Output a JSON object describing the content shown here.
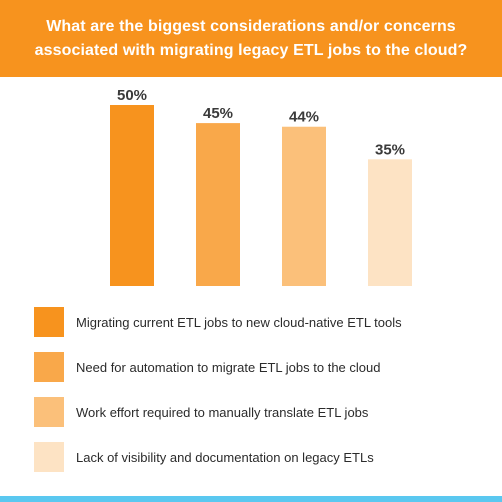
{
  "header": {
    "title": "What are the biggest considerations and/or concerns associated with migrating legacy ETL jobs to the cloud?"
  },
  "chart_data": {
    "type": "bar",
    "title": "What are the biggest considerations and/or concerns associated with migrating legacy ETL jobs to the cloud?",
    "categories": [
      "Migrating current ETL jobs to new cloud-native ETL tools",
      "Need for automation to migrate ETL jobs to the cloud",
      "Work effort required to manually translate ETL jobs",
      "Lack of visibility and documentation on legacy ETLs"
    ],
    "values": [
      50,
      45,
      44,
      35
    ],
    "value_labels": [
      "50%",
      "45%",
      "44%",
      "35%"
    ],
    "colors": [
      "#f7931e",
      "#f9a84a",
      "#fbc07a",
      "#fde3c4"
    ],
    "ylim": [
      0,
      50
    ],
    "grid": false,
    "legend_position": "bottom"
  },
  "legend": {
    "items": [
      {
        "label": "Migrating current ETL jobs to new cloud-native ETL tools",
        "color": "#f7931e"
      },
      {
        "label": "Need for automation to migrate ETL jobs to the cloud",
        "color": "#f9a84a"
      },
      {
        "label": "Work effort required to manually translate ETL jobs",
        "color": "#fbc07a"
      },
      {
        "label": "Lack of visibility and documentation on legacy ETLs",
        "color": "#fde3c4"
      }
    ]
  },
  "colors": {
    "header_bg": "#f7931e",
    "footer_accent": "#5ac8f0"
  }
}
